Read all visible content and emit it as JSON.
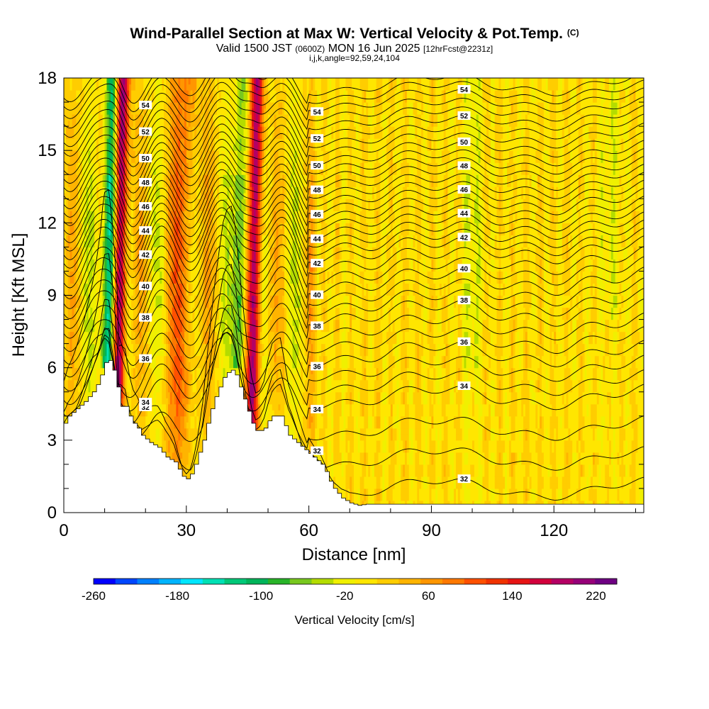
{
  "header": {
    "title": "Wind-Parallel Section at Max W: Vertical Velocity & Pot.Temp.",
    "copyright": "(C)",
    "valid_main": "Valid 1500 JST",
    "valid_utc": "(0600Z)",
    "valid_date": "MON 16 Jun 2025",
    "forecast_info": "[12hrFcst@2231z]",
    "grid_info": "i,j,k,angle=92,59,24,104"
  },
  "chart_data": {
    "type": "heatmap",
    "xlabel": "Distance [nm]",
    "ylabel": "Height [Kft MSL]",
    "xlim": [
      0,
      142
    ],
    "ylim": [
      0,
      18
    ],
    "x_ticks": [
      "0",
      "30",
      "60",
      "90",
      "120"
    ],
    "y_ticks": [
      "0",
      "3",
      "6",
      "9",
      "12",
      "15",
      "18"
    ],
    "colorbar": {
      "label": "Vertical Velocity [cm/s]",
      "ticks": [
        "-260",
        "-180",
        "-100",
        "-20",
        "60",
        "140",
        "220"
      ],
      "range": [
        -260,
        240
      ],
      "colors": [
        "#0000ff",
        "#0046ff",
        "#0080ff",
        "#00b4ff",
        "#00e6ff",
        "#00e0b4",
        "#00c878",
        "#00b45a",
        "#28b428",
        "#78c81e",
        "#b4dc00",
        "#f0f000",
        "#ffe600",
        "#ffcd00",
        "#ffb400",
        "#ff9600",
        "#ff7800",
        "#ff5000",
        "#f03200",
        "#e61414",
        "#d2003c",
        "#b40064",
        "#960078",
        "#6e0082"
      ]
    },
    "updraft_cores": [
      {
        "x": 13.5,
        "w": 230
      },
      {
        "x": 46.5,
        "w": 200
      },
      {
        "x": 29.0,
        "w": 70
      }
    ],
    "downdraft_cores": [
      {
        "x": 11.0,
        "w": -190
      },
      {
        "x": 43.0,
        "w": -110
      }
    ],
    "terrain_kft": [
      [
        0,
        3.7
      ],
      [
        1,
        4.0
      ],
      [
        3,
        4.3
      ],
      [
        5,
        4.6
      ],
      [
        7,
        5.0
      ],
      [
        8,
        5.3
      ],
      [
        9,
        5.7
      ],
      [
        9.8,
        6.2
      ],
      [
        11,
        6.3
      ],
      [
        12,
        5.9
      ],
      [
        13,
        5.2
      ],
      [
        13.2,
        4.3
      ],
      [
        14,
        4.4
      ],
      [
        15,
        4.4
      ],
      [
        16,
        4.0
      ],
      [
        17,
        3.7
      ],
      [
        18,
        3.5
      ],
      [
        19,
        3.2
      ],
      [
        21,
        2.9
      ],
      [
        23,
        2.7
      ],
      [
        25,
        2.3
      ],
      [
        27,
        2.1
      ],
      [
        28,
        1.8
      ],
      [
        29,
        1.5
      ],
      [
        30,
        1.4
      ],
      [
        31,
        1.6
      ],
      [
        32,
        2.0
      ],
      [
        33,
        2.5
      ],
      [
        34,
        3.0
      ],
      [
        35,
        3.7
      ],
      [
        36,
        4.3
      ],
      [
        37,
        4.8
      ],
      [
        38,
        5.2
      ],
      [
        39,
        5.6
      ],
      [
        40,
        5.8
      ],
      [
        41,
        5.9
      ],
      [
        42,
        5.7
      ],
      [
        43,
        5.2
      ],
      [
        44,
        4.7
      ],
      [
        45,
        4.2
      ],
      [
        46,
        3.7
      ],
      [
        47,
        3.4
      ],
      [
        48,
        3.4
      ],
      [
        49,
        3.5
      ],
      [
        50,
        3.8
      ],
      [
        51,
        4.0
      ],
      [
        53,
        4.0
      ],
      [
        54,
        3.6
      ],
      [
        55,
        3.2
      ],
      [
        57,
        2.9
      ],
      [
        59,
        2.6
      ],
      [
        61,
        2.3
      ],
      [
        63,
        2.0
      ],
      [
        64,
        1.7
      ],
      [
        65,
        1.3
      ],
      [
        66,
        1.0
      ],
      [
        67,
        0.8
      ],
      [
        68,
        0.6
      ],
      [
        70,
        0.4
      ],
      [
        72,
        0.3
      ],
      [
        74,
        0.35
      ],
      [
        142,
        0.35
      ]
    ],
    "theta_contours": [
      {
        "label": "32",
        "base_kft": 1.0
      },
      {
        "label": "34",
        "base_kft": 4.8
      },
      {
        "label": "36",
        "base_kft": 6.6
      },
      {
        "label": "38",
        "base_kft": 8.3
      },
      {
        "label": "40",
        "base_kft": 9.6
      },
      {
        "label": "42",
        "base_kft": 10.9
      },
      {
        "label": "44",
        "base_kft": 11.9
      },
      {
        "label": "46",
        "base_kft": 12.9
      },
      {
        "label": "48",
        "base_kft": 13.9
      },
      {
        "label": "50",
        "base_kft": 14.9
      },
      {
        "label": "52",
        "base_kft": 16.0
      },
      {
        "label": "54",
        "base_kft": 17.1
      }
    ]
  }
}
